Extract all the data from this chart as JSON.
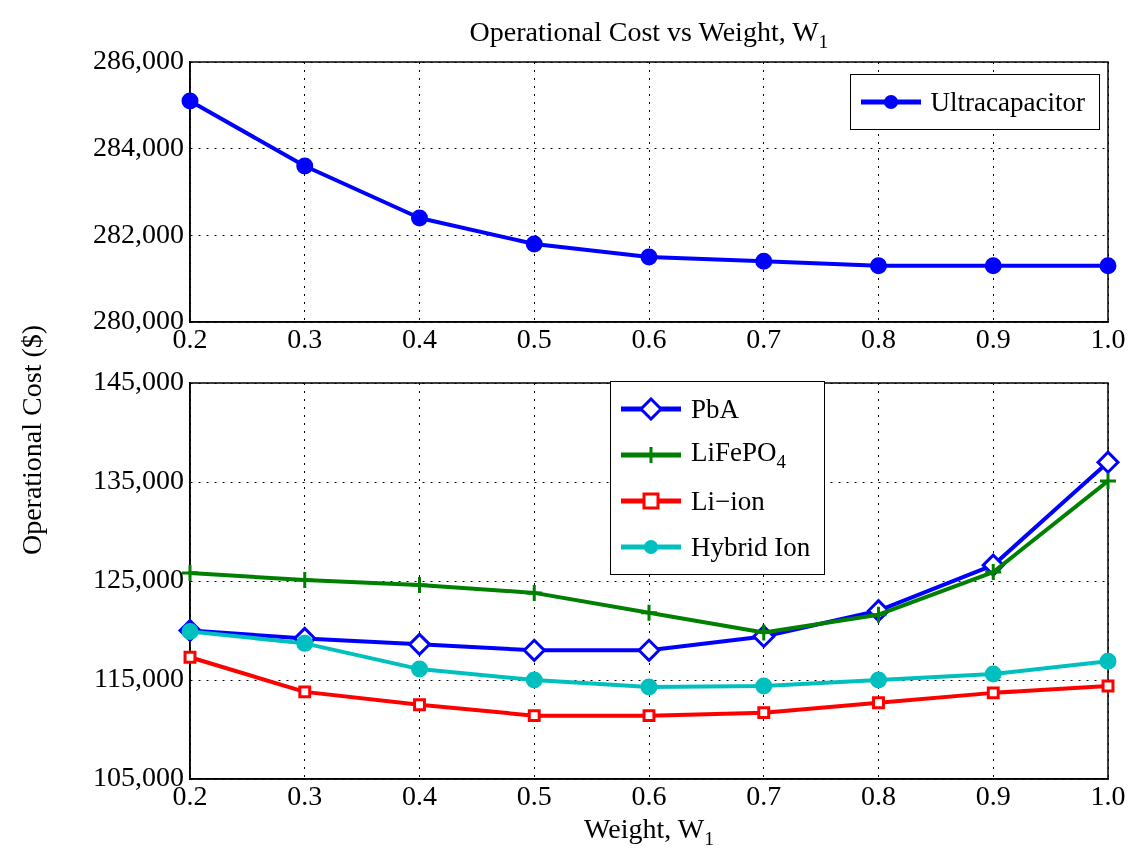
{
  "chart_data": [
    {
      "type": "line",
      "title": "Operational Cost vs Weight, W$_{1}$",
      "x": [
        0.2,
        0.3,
        0.4,
        0.5,
        0.6,
        0.7,
        0.8,
        0.9,
        1.0
      ],
      "xlim": [
        0.2,
        1.0
      ],
      "xticks": [
        {
          "value": 0.2,
          "label": "0.2"
        },
        {
          "value": 0.3,
          "label": "0.3"
        },
        {
          "value": 0.4,
          "label": "0.4"
        },
        {
          "value": 0.5,
          "label": "0.5"
        },
        {
          "value": 0.6,
          "label": "0.6"
        },
        {
          "value": 0.7,
          "label": "0.7"
        },
        {
          "value": 0.8,
          "label": "0.8"
        },
        {
          "value": 0.9,
          "label": "0.9"
        },
        {
          "value": 1.0,
          "label": "1.0"
        }
      ],
      "ylim": [
        280000,
        286000
      ],
      "yticks": [
        {
          "value": 280000,
          "label": "280,000"
        },
        {
          "value": 282000,
          "label": "282,000"
        },
        {
          "value": 284000,
          "label": "284,000"
        },
        {
          "value": 286000,
          "label": "286,000"
        }
      ],
      "grid": true,
      "legend": "top right",
      "line_style": "solid",
      "series": [
        {
          "name": "Ultracapacitor",
          "color": "#0000ff",
          "marker": "circle",
          "values": [
            285100,
            283600,
            282400,
            281800,
            281500,
            281400,
            281300,
            281300,
            281300
          ]
        }
      ]
    },
    {
      "type": "line",
      "xlabel": "Weight, W$_{1}$",
      "ylabel": "Operational Cost ($)",
      "x": [
        0.2,
        0.3,
        0.4,
        0.5,
        0.6,
        0.7,
        0.8,
        0.9,
        1.0
      ],
      "xlim": [
        0.2,
        1.0
      ],
      "xticks": [
        {
          "value": 0.2,
          "label": "0.2"
        },
        {
          "value": 0.3,
          "label": "0.3"
        },
        {
          "value": 0.4,
          "label": "0.4"
        },
        {
          "value": 0.5,
          "label": "0.5"
        },
        {
          "value": 0.6,
          "label": "0.6"
        },
        {
          "value": 0.7,
          "label": "0.7"
        },
        {
          "value": 0.8,
          "label": "0.8"
        },
        {
          "value": 0.9,
          "label": "0.9"
        },
        {
          "value": 1.0,
          "label": "1.0"
        }
      ],
      "ylim": [
        105000,
        145000
      ],
      "yticks": [
        {
          "value": 105000,
          "label": "105,000"
        },
        {
          "value": 115000,
          "label": "115,000"
        },
        {
          "value": 125000,
          "label": "125,000"
        },
        {
          "value": 135000,
          "label": "135,000"
        },
        {
          "value": 145000,
          "label": "145,000"
        }
      ],
      "grid": true,
      "legend": "top",
      "line_style": "solid",
      "series": [
        {
          "name": "PbA",
          "color": "#0000ff",
          "marker": "diamond",
          "values": [
            120000,
            119200,
            118600,
            118000,
            118000,
            119400,
            122000,
            126600,
            137000
          ]
        },
        {
          "name": "LiFePO$_{4}$",
          "color": "#008000",
          "marker": "cross",
          "values": [
            125800,
            125100,
            124600,
            123800,
            121800,
            119800,
            121600,
            125900,
            135100
          ]
        },
        {
          "name": "Li−ion",
          "color": "#ff0000",
          "marker": "square",
          "values": [
            117300,
            113800,
            112500,
            111400,
            111400,
            111700,
            112700,
            113700,
            114400
          ]
        },
        {
          "name": "Hybrid Ion",
          "color": "#00bfbf",
          "marker": "circle",
          "values": [
            119900,
            118700,
            116100,
            115000,
            114300,
            114400,
            115000,
            115600,
            116900
          ]
        }
      ]
    }
  ]
}
